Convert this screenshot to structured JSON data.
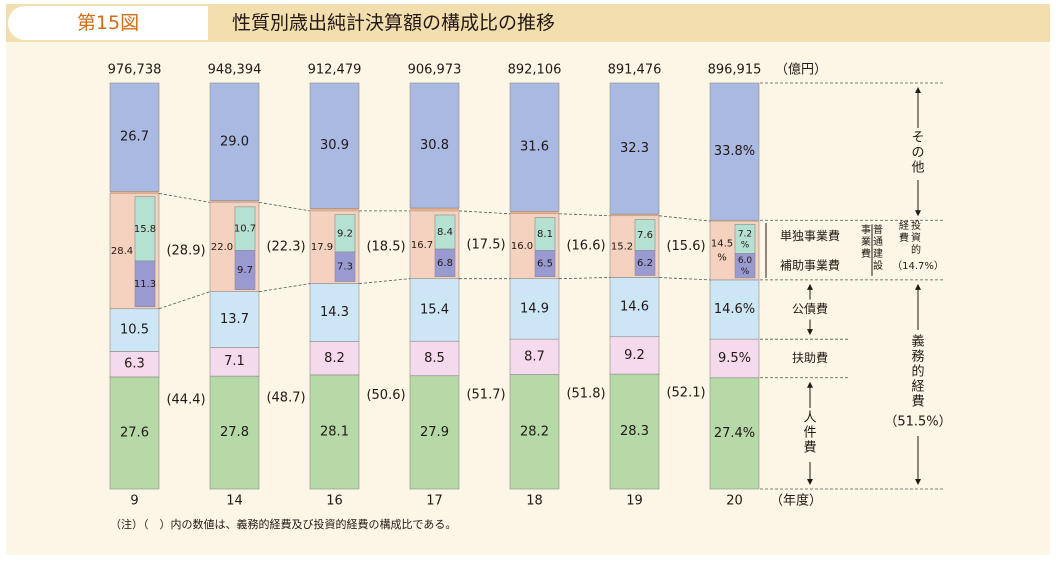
{
  "header": {
    "figure_no": "第15図",
    "title": "性質別歳出純計決算額の構成比の推移"
  },
  "colors": {
    "other": "#a9b9e2",
    "own_project": "#b5e1d3",
    "subsidized": "#9a9ad3",
    "construction": "#f5d2bf",
    "debt": "#cde6f6",
    "assistance": "#f5d9ec",
    "personnel": "#b5d9a7"
  },
  "chart_data": {
    "type": "stacked-bar",
    "unit_label": "（億円）",
    "x_axis_label": "（年度）",
    "categories": [
      "9",
      "14",
      "16",
      "17",
      "18",
      "19",
      "20"
    ],
    "totals": [
      "976,738",
      "948,394",
      "912,479",
      "906,973",
      "892,106",
      "891,476",
      "896,915"
    ],
    "series": {
      "personnel": {
        "values": [
          27.6,
          27.8,
          28.1,
          27.9,
          28.2,
          28.3,
          27.4
        ],
        "labels": [
          "27.6",
          "27.8",
          "28.1",
          "27.9",
          "28.2",
          "28.3",
          "27.4%"
        ]
      },
      "assistance": {
        "values": [
          6.3,
          7.1,
          8.2,
          8.5,
          8.7,
          9.2,
          9.5
        ],
        "labels": [
          "6.3",
          "7.1",
          "8.2",
          "8.5",
          "8.7",
          "9.2",
          "9.5%"
        ]
      },
      "debt": {
        "values": [
          10.5,
          13.7,
          14.3,
          15.4,
          14.9,
          14.6,
          14.6
        ],
        "labels": [
          "10.5",
          "13.7",
          "14.3",
          "15.4",
          "14.9",
          "14.6",
          "14.6%"
        ]
      },
      "construction": {
        "values": [
          28.4,
          22.0,
          17.9,
          16.7,
          16.0,
          15.2,
          14.5
        ],
        "labels": [
          "28.4",
          "22.0",
          "17.9",
          "16.7",
          "16.0",
          "15.2",
          "14.5 %"
        ]
      },
      "own_project": {
        "values": [
          15.8,
          10.7,
          9.2,
          8.4,
          8.1,
          7.6,
          7.2
        ],
        "labels": [
          "15.8",
          "10.7",
          "9.2",
          "8.4",
          "8.1",
          "7.6",
          "7.2 %"
        ]
      },
      "subsidized": {
        "values": [
          11.3,
          9.7,
          7.3,
          6.8,
          6.5,
          6.2,
          6.0
        ],
        "labels": [
          "11.3",
          "9.7",
          "7.3",
          "6.8",
          "6.5",
          "6.2",
          "6.0 %"
        ]
      },
      "other": {
        "values": [
          26.7,
          29.0,
          30.9,
          30.8,
          31.6,
          32.3,
          33.8
        ],
        "labels": [
          "26.7",
          "29.0",
          "30.9",
          "30.8",
          "31.6",
          "32.3",
          "33.8%"
        ]
      }
    },
    "investment_share": [
      "(28.9)",
      "(22.3)",
      "(18.5)",
      "(17.5)",
      "(16.6)",
      "(15.6)"
    ],
    "mandatory_share": [
      "(44.4)",
      "(48.7)",
      "(50.6)",
      "(51.7)",
      "(51.8)",
      "(52.1)"
    ],
    "segment_labels": {
      "own_project": "単独事業費",
      "subsidized": "補助事業費",
      "debt": "公債費",
      "assistance": "扶助費",
      "personnel": "人件費",
      "other": "その他",
      "construction": "普通建設事業費",
      "investment": "投資的経費",
      "investment_pct": "（14.7%）",
      "mandatory": "義務的経費",
      "mandatory_pct": "（51.5%）"
    }
  },
  "note": "（注）（　）内の数値は、義務的経費及び投資的経費の構成比である。"
}
